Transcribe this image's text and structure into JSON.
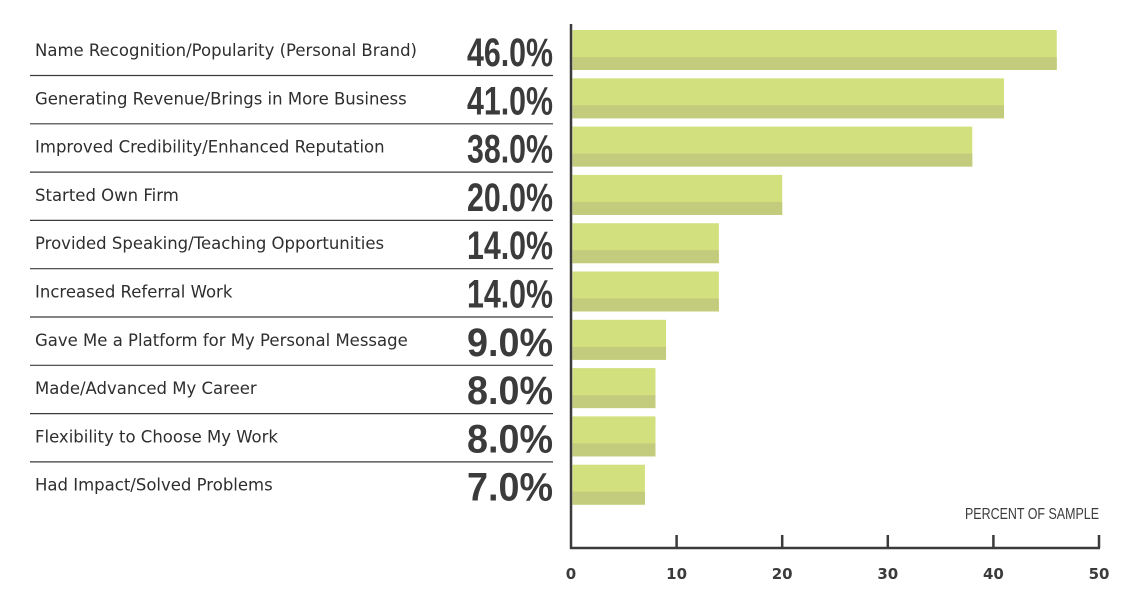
{
  "chart_data": {
    "type": "bar",
    "orientation": "horizontal",
    "categories": [
      "Name Recognition/Popularity (Personal Brand)",
      "Generating Revenue/Brings in More Business",
      "Improved Credibility/Enhanced Reputation",
      "Started Own Firm",
      "Provided Speaking/Teaching Opportunities",
      "Increased Referral Work",
      "Gave Me a Platform for My Personal Message",
      "Made/Advanced My Career",
      "Flexibility to Choose My Work",
      "Had Impact/Solved Problems"
    ],
    "values": [
      46,
      41,
      38,
      20,
      14,
      14,
      9,
      8,
      8,
      7
    ],
    "value_labels": [
      "46.0%",
      "41.0%",
      "38.0%",
      "20.0%",
      "14.0%",
      "14.0%",
      "9.0%",
      "8.0%",
      "8.0%",
      "7.0%"
    ],
    "xlabel": "PERCENT OF SAMPLE",
    "xlim": [
      0,
      50
    ],
    "xticks": [
      "0",
      "10",
      "20",
      "30",
      "40",
      "50"
    ],
    "grid": false,
    "colors": {
      "bar": "#d3e07e",
      "bar_shadow": "#c2cc7c",
      "text": "#3b3b3b"
    }
  }
}
